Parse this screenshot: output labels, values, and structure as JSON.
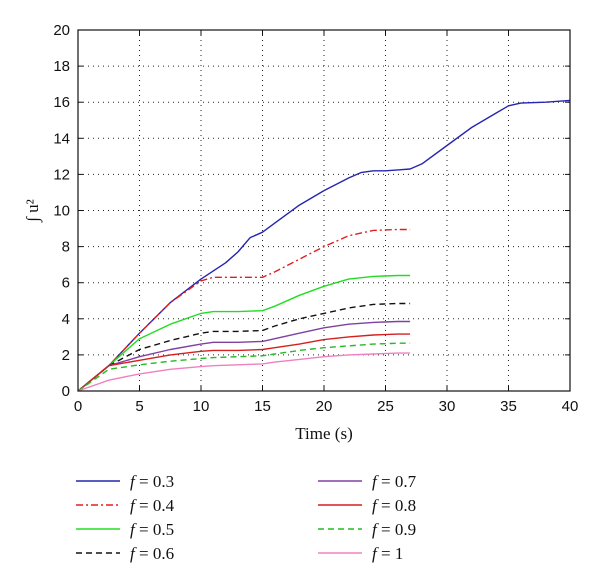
{
  "chart_data": {
    "type": "line",
    "xlabel": "Time (s)",
    "ylabel": "∫ u²",
    "xlim": [
      0,
      40
    ],
    "ylim": [
      0,
      20
    ],
    "xticks": [
      0,
      5,
      10,
      15,
      20,
      25,
      30,
      35,
      40
    ],
    "yticks": [
      0,
      2,
      4,
      6,
      8,
      10,
      12,
      14,
      16,
      18,
      20
    ],
    "grid": true,
    "legend_position": "below",
    "series": [
      {
        "name": "f = 0.3",
        "label_var": "f",
        "label_value": " = 0.3",
        "color": "#2525b0",
        "dash": "solid",
        "x": [
          0,
          2.5,
          5,
          7.5,
          10,
          12,
          13,
          14,
          15,
          16,
          18,
          20,
          22,
          23,
          24,
          25,
          26,
          27,
          28,
          30,
          32,
          34,
          35,
          36,
          38,
          40
        ],
        "y": [
          0,
          1.4,
          3.2,
          4.9,
          6.2,
          7.1,
          7.7,
          8.5,
          8.8,
          9.3,
          10.3,
          11.1,
          11.8,
          12.1,
          12.2,
          12.2,
          12.25,
          12.3,
          12.6,
          13.6,
          14.6,
          15.4,
          15.8,
          15.95,
          16.0,
          16.1
        ]
      },
      {
        "name": "f = 0.4",
        "label_var": "f",
        "label_value": " = 0.4",
        "color": "#e02020",
        "dash": "dashdot",
        "x": [
          0,
          2.5,
          5,
          7.5,
          10,
          11,
          13,
          15,
          16,
          18,
          20,
          22,
          24,
          26,
          27
        ],
        "y": [
          0,
          1.4,
          3.2,
          4.9,
          6.1,
          6.3,
          6.3,
          6.3,
          6.6,
          7.3,
          8.0,
          8.6,
          8.9,
          8.95,
          8.95
        ]
      },
      {
        "name": "f = 0.5",
        "label_var": "f",
        "label_value": " = 0.5",
        "color": "#22dd22",
        "dash": "solid",
        "x": [
          0,
          2.5,
          5,
          7.5,
          10,
          11,
          13,
          15,
          16,
          18,
          20,
          22,
          24,
          26,
          27
        ],
        "y": [
          0,
          1.4,
          2.9,
          3.7,
          4.3,
          4.4,
          4.4,
          4.45,
          4.7,
          5.3,
          5.8,
          6.2,
          6.35,
          6.4,
          6.4
        ]
      },
      {
        "name": "f = 0.6",
        "label_var": "f",
        "label_value": " = 0.6",
        "color": "#111111",
        "dash": "dashed",
        "x": [
          0,
          2.5,
          5,
          7.5,
          10,
          11,
          13,
          15,
          16,
          18,
          20,
          22,
          24,
          26,
          27
        ],
        "y": [
          0,
          1.4,
          2.3,
          2.8,
          3.2,
          3.3,
          3.3,
          3.35,
          3.6,
          4.0,
          4.3,
          4.6,
          4.8,
          4.85,
          4.85
        ]
      },
      {
        "name": "f = 0.7",
        "label_var": "f",
        "label_value": " = 0.7",
        "color": "#8040a0",
        "dash": "solid",
        "x": [
          0,
          2.5,
          5,
          7.5,
          10,
          11,
          13,
          15,
          16,
          18,
          20,
          22,
          24,
          26,
          27
        ],
        "y": [
          0,
          1.4,
          1.9,
          2.3,
          2.6,
          2.7,
          2.7,
          2.75,
          2.9,
          3.2,
          3.5,
          3.7,
          3.8,
          3.85,
          3.85
        ]
      },
      {
        "name": "f = 0.8",
        "label_var": "f",
        "label_value": " = 0.8",
        "color": "#d42020",
        "dash": "solid",
        "x": [
          0,
          2.5,
          5,
          7.5,
          10,
          11,
          13,
          15,
          16,
          18,
          20,
          22,
          24,
          26,
          27
        ],
        "y": [
          0,
          1.4,
          1.7,
          2.0,
          2.2,
          2.25,
          2.25,
          2.3,
          2.4,
          2.6,
          2.85,
          3.0,
          3.1,
          3.15,
          3.15
        ]
      },
      {
        "name": "f = 0.9",
        "label_var": "f",
        "label_value": " = 0.9",
        "color": "#22bb22",
        "dash": "dashed",
        "x": [
          0,
          2.5,
          5,
          7.5,
          10,
          11,
          13,
          15,
          16,
          18,
          20,
          22,
          24,
          26,
          27
        ],
        "y": [
          0,
          1.2,
          1.45,
          1.65,
          1.8,
          1.85,
          1.9,
          1.95,
          2.05,
          2.25,
          2.4,
          2.5,
          2.6,
          2.65,
          2.65
        ]
      },
      {
        "name": "f = 1",
        "label_var": "f",
        "label_value": " = 1",
        "color": "#f080c0",
        "dash": "solid",
        "x": [
          0,
          2.5,
          5,
          7.5,
          10,
          11,
          13,
          15,
          16,
          18,
          20,
          22,
          24,
          26,
          27
        ],
        "y": [
          0,
          0.6,
          0.95,
          1.2,
          1.35,
          1.4,
          1.45,
          1.5,
          1.6,
          1.75,
          1.9,
          2.0,
          2.05,
          2.1,
          2.1
        ]
      }
    ]
  }
}
